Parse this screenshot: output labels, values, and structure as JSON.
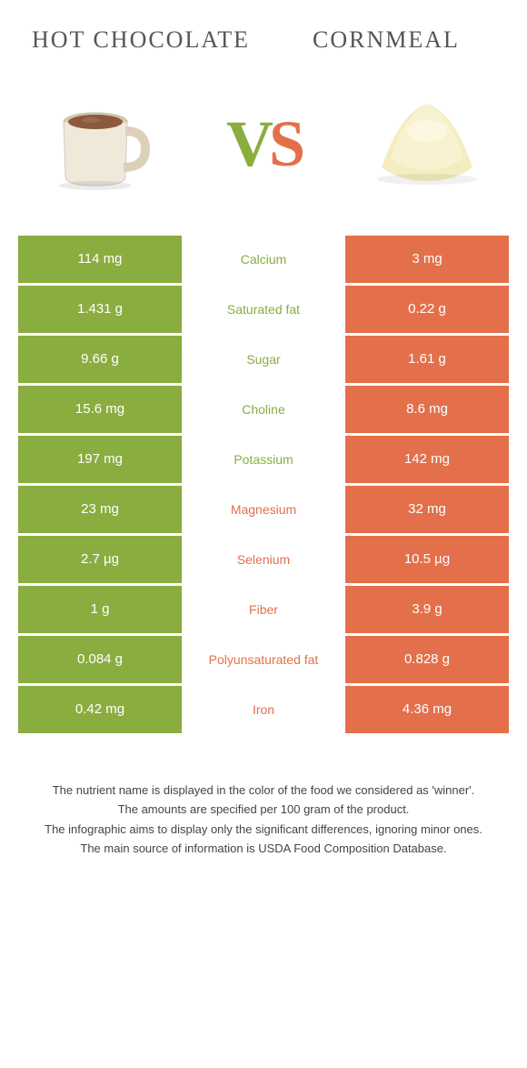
{
  "header": {
    "left_title": "Hot chocolate",
    "right_title": "Cornmeal",
    "vs_v": "V",
    "vs_s": "S"
  },
  "colors": {
    "left": "#8aad3f",
    "right": "#e3704b",
    "text": "#555555"
  },
  "rows": [
    {
      "left": "114 mg",
      "label": "Calcium",
      "right": "3 mg",
      "winner": "left"
    },
    {
      "left": "1.431 g",
      "label": "Saturated fat",
      "right": "0.22 g",
      "winner": "left"
    },
    {
      "left": "9.66 g",
      "label": "Sugar",
      "right": "1.61 g",
      "winner": "left"
    },
    {
      "left": "15.6 mg",
      "label": "Choline",
      "right": "8.6 mg",
      "winner": "left"
    },
    {
      "left": "197 mg",
      "label": "Potassium",
      "right": "142 mg",
      "winner": "left"
    },
    {
      "left": "23 mg",
      "label": "Magnesium",
      "right": "32 mg",
      "winner": "right"
    },
    {
      "left": "2.7 µg",
      "label": "Selenium",
      "right": "10.5 µg",
      "winner": "right"
    },
    {
      "left": "1 g",
      "label": "Fiber",
      "right": "3.9 g",
      "winner": "right"
    },
    {
      "left": "0.084 g",
      "label": "Polyunsaturated fat",
      "right": "0.828 g",
      "winner": "right"
    },
    {
      "left": "0.42 mg",
      "label": "Iron",
      "right": "4.36 mg",
      "winner": "right"
    }
  ],
  "footer": {
    "line1": "The nutrient name is displayed in the color of the food we considered as 'winner'.",
    "line2": "The amounts are specified per 100 gram of the product.",
    "line3": "The infographic aims to display only the significant differences, ignoring minor ones.",
    "line4": "The main source of information is USDA Food Composition Database."
  }
}
